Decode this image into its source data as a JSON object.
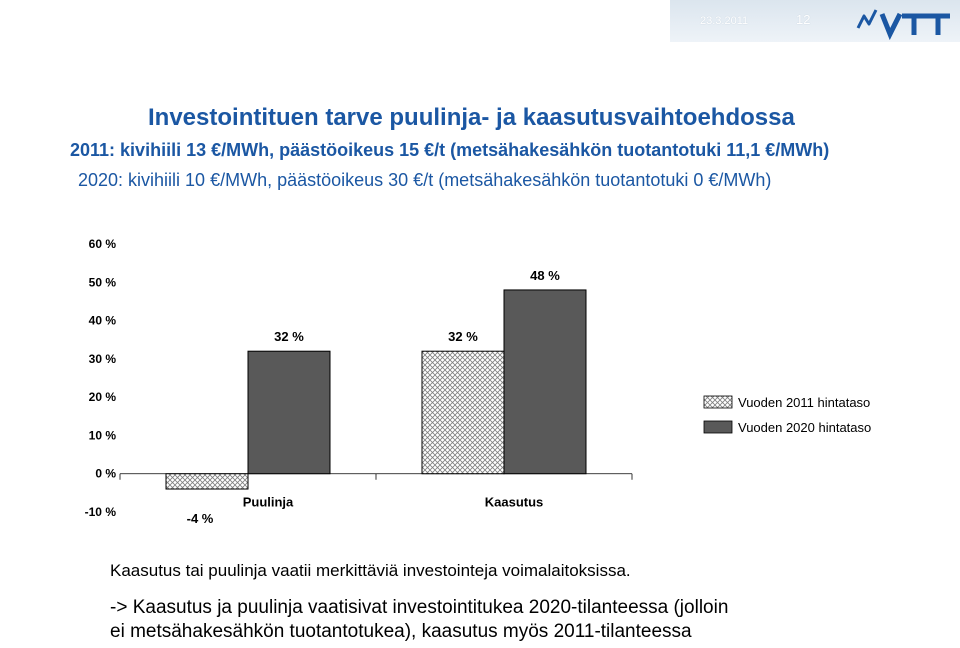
{
  "header": {
    "date": "23.3.2011",
    "page": "12",
    "logo_icon": "vtt-logo-icon",
    "band_color": "#dbe5ee"
  },
  "title": "Investointituen tarve puulinja- ja kaasutusvaihtoehdossa",
  "subtitle_2011": "2011: kivihiili 13 €/MWh, päästöoikeus 15 €/t (metsähakesähkön tuotantotuki 11,1 €/MWh)",
  "subtitle_2020": "2020: kivihiili 10 €/MWh, päästöoikeus 30 €/t (metsähakesähkön tuotantotuki 0 €/MWh)",
  "chart_data": {
    "type": "bar",
    "categories": [
      "Puulinja",
      "Kaasutus"
    ],
    "series": [
      {
        "name": "Vuoden 2011 hintataso",
        "values": [
          -4,
          32
        ],
        "labels": [
          "-4 %",
          "32 %"
        ],
        "pattern": "hatched",
        "color": "#c8c8c8"
      },
      {
        "name": "Vuoden 2020 hintataso",
        "values": [
          32,
          48
        ],
        "labels": [
          "32 %",
          "48 %"
        ],
        "pattern": "solid",
        "color": "#595959"
      }
    ],
    "ylim": [
      -10,
      60
    ],
    "yticks": [
      -10,
      0,
      10,
      20,
      30,
      40,
      50,
      60
    ],
    "ytick_labels": [
      "-10 %",
      "0 %",
      "10 %",
      "20 %",
      "30 %",
      "40 %",
      "50 %",
      "60 %"
    ],
    "legend_position": "right",
    "grid": false
  },
  "notes": {
    "line1": "Kaasutus tai puulinja vaatii merkittäviä investointeja voimalaitoksissa.",
    "line2a": "-> Kaasutus ja puulinja vaatisivat investointitukea 2020-tilanteessa (jolloin",
    "line2b": "ei metsähakesähkön tuotantotukea), kaasutus myös 2011-tilanteessa"
  },
  "colors": {
    "title": "#1b57a3",
    "bar_2020": "#595959",
    "bar_2011": "#c8c8c8"
  }
}
